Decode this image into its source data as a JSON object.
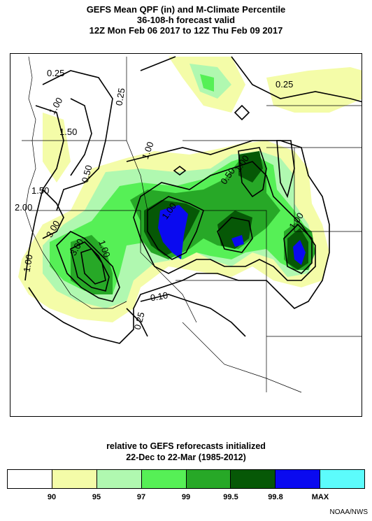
{
  "title": {
    "line1": "GEFS Mean QPF (in) and M-Climate Percentile",
    "line2": "36-108-h forecast valid",
    "line3": "12Z Mon Feb 06 2017 to 12Z Thu Feb 09 2017"
  },
  "contour_labels": [
    "0.25",
    "1.00",
    "0.25",
    "0.25",
    "1.50",
    "1.00",
    "0.50",
    "1.50",
    "0.50",
    "1.00",
    "2.00",
    "3.00",
    "3.00",
    "1.00",
    "1.00",
    "1.00",
    "0.10",
    "0.25"
  ],
  "subtitle": {
    "line1": "relative to GEFS reforecasts initialized",
    "line2": "22-Dec to 22-Mar (1985-2012)"
  },
  "legend": {
    "colors": [
      "#ffffff",
      "#f4fca8",
      "#b0f8b0",
      "#56f056",
      "#27a827",
      "#065806",
      "#0a0af0",
      "#5cfcfc"
    ],
    "ticks": [
      "90",
      "95",
      "97",
      "99",
      "99.5",
      "99.8",
      "MAX"
    ]
  },
  "credit": "NOAA/NWS"
}
